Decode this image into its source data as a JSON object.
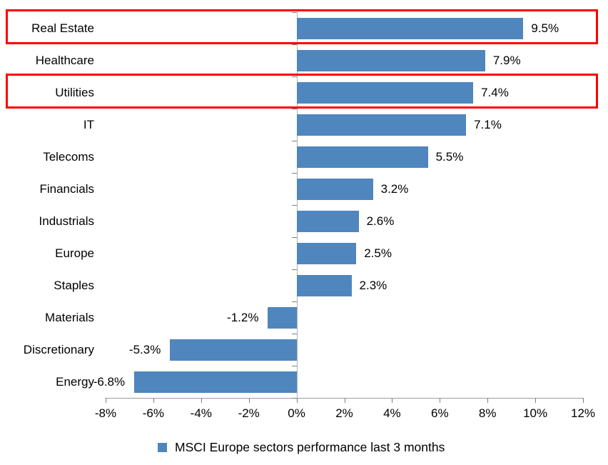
{
  "chart_data": {
    "type": "bar",
    "orientation": "horizontal",
    "title": "",
    "legend": "MSCI Europe sectors performance last 3 months",
    "legend_position": "bottom",
    "categories": [
      "Real Estate",
      "Healthcare",
      "Utilities",
      "IT",
      "Telecoms",
      "Financials",
      "Industrials",
      "Europe",
      "Staples",
      "Materials",
      "Discretionary",
      "Energy"
    ],
    "values": [
      9.5,
      7.9,
      7.4,
      7.1,
      5.5,
      3.2,
      2.6,
      2.5,
      2.3,
      -1.2,
      -5.3,
      -6.8
    ],
    "value_labels": [
      "9.5%",
      "7.9%",
      "7.4%",
      "7.1%",
      "5.5%",
      "3.2%",
      "2.6%",
      "2.5%",
      "2.3%",
      "-1.2%",
      "-5.3%",
      "-6.8%"
    ],
    "xlim": [
      -8,
      12
    ],
    "x_tick_values": [
      -8,
      -6,
      -4,
      -2,
      0,
      2,
      4,
      6,
      8,
      10,
      12
    ],
    "x_tick_labels": [
      "-8%",
      "-6%",
      "-4%",
      "-2%",
      "0%",
      "2%",
      "4%",
      "6%",
      "8%",
      "10%",
      "12%"
    ],
    "grid": false,
    "bar_color": "#4f86bd",
    "highlight_color": "#fe0000",
    "highlighted_categories": [
      "Real Estate",
      "Utilities"
    ]
  }
}
